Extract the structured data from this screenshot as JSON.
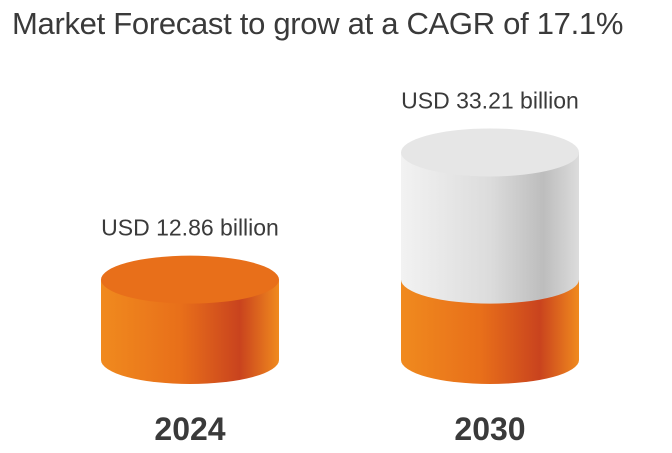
{
  "colors": {
    "orange_light": "#f08a1e",
    "orange_mid": "#e86f1a",
    "orange_dark": "#c9431e",
    "gray_light": "#f2f2f2",
    "gray_mid": "#dcdcdc",
    "gray_dark": "#bdbdbd",
    "text": "#3a3a3a"
  },
  "chart_data": {
    "type": "bar",
    "title": "Market Forecast to grow at a CAGR of 17.1%",
    "categories": [
      "2024",
      "2030"
    ],
    "values": [
      12.86,
      33.21
    ],
    "value_labels": [
      "USD 12.86 billion",
      "USD 33.21 billion"
    ],
    "unit": "USD billion",
    "cagr_percent": 17.1,
    "base_value_shown_in_forecast": 12.86,
    "xlabel": "",
    "ylabel": "",
    "grid": false,
    "legend": "none"
  }
}
